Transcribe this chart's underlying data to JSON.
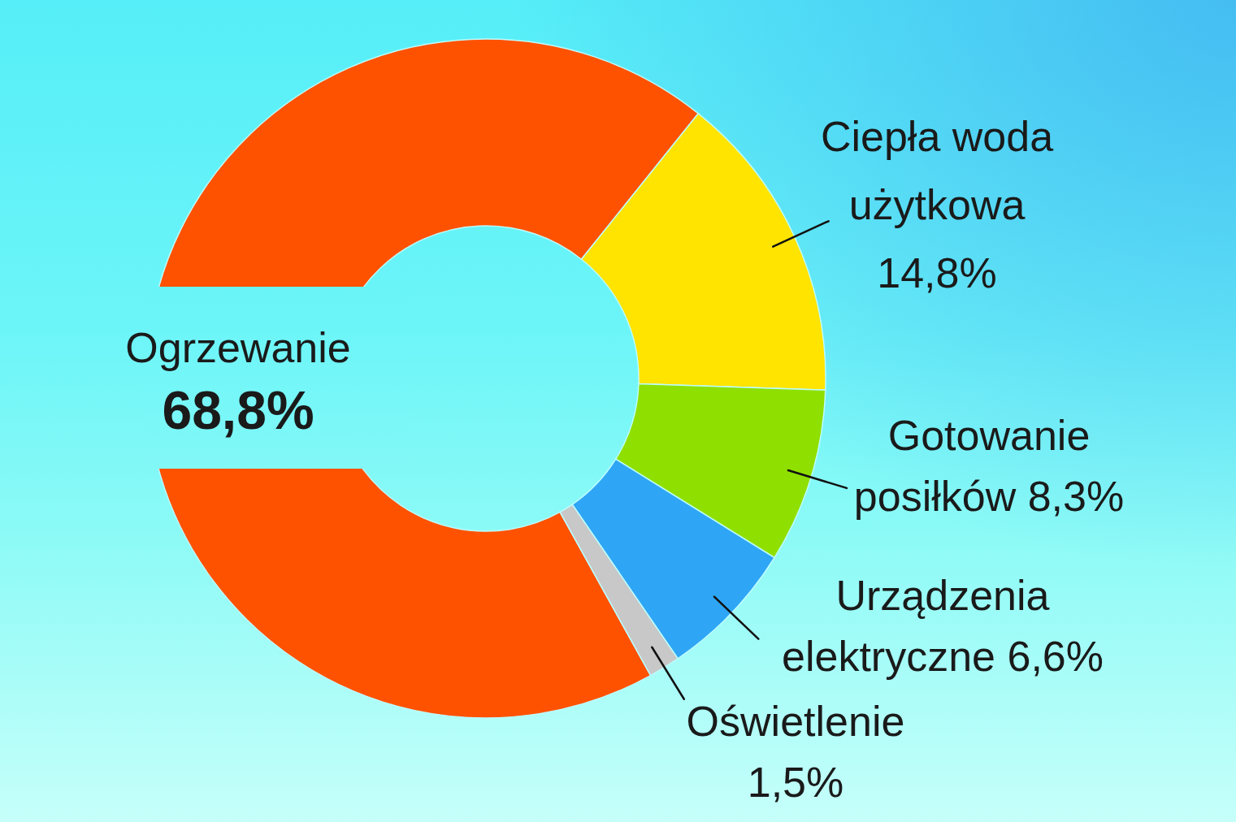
{
  "chart_data": {
    "type": "donut",
    "categories": [
      "Ogrzewanie",
      "Ciepła woda użytkowa",
      "Gotowanie posiłków",
      "Urządzenia elektryczne",
      "Oświetlenie"
    ],
    "values": [
      68.8,
      14.8,
      8.3,
      6.6,
      1.5
    ],
    "colors": [
      "#ff5200",
      "#ffe400",
      "#8fe000",
      "#2fa6f5",
      "#c8c8c8"
    ],
    "value_labels": [
      "68,8%",
      "14,8%",
      "8,3%",
      "6,6%",
      "1,5%"
    ]
  }
}
